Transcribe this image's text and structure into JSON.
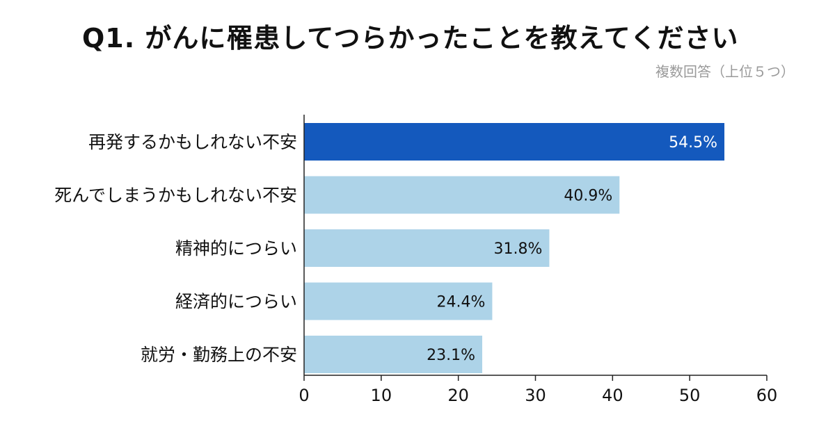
{
  "chart_data": {
    "type": "bar",
    "orientation": "horizontal",
    "title": "Q1. がんに罹患してつらかったことを教えてください",
    "subtitle": "複数回答（上位５つ）",
    "categories": [
      "再発するかもしれない不安",
      "死んでしまうかもしれない不安",
      "精神的につらい",
      "経済的につらい",
      "就労・勤務上の不安"
    ],
    "values": [
      54.5,
      40.9,
      31.8,
      24.4,
      23.1
    ],
    "value_labels": [
      "54.5%",
      "40.9%",
      "31.8%",
      "24.4%",
      "23.1%"
    ],
    "xlim": [
      0,
      60
    ],
    "xticks": [
      0,
      10,
      20,
      30,
      40,
      50,
      60
    ],
    "xlabel": "",
    "ylabel": "",
    "grid": false,
    "colors": {
      "highlight": "#1459bd",
      "bar": "#add3e8",
      "axis": "#222222",
      "highlight_label": "#ffffff",
      "label": "#111111"
    }
  }
}
